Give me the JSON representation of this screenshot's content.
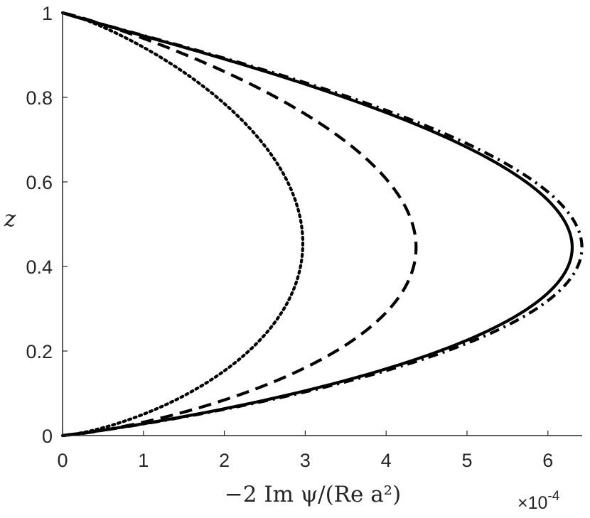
{
  "chart_data": {
    "type": "line",
    "xlabel": "−2 Im ψ/(Re a²)",
    "ylabel": "z",
    "x_multiplier_label": "×10",
    "x_multiplier_exponent": "-4",
    "xlim": [
      0,
      6.5
    ],
    "ylim": [
      0,
      1
    ],
    "xticks": [
      "0",
      "1",
      "2",
      "3",
      "4",
      "5",
      "6"
    ],
    "yticks": [
      "0",
      "0.2",
      "0.4",
      "0.6",
      "0.8",
      "1"
    ],
    "grid": false,
    "series": [
      {
        "style": "dotted",
        "peak_x": 2.97,
        "peak_z": 0.455,
        "shape": 2.2,
        "color": "#000000"
      },
      {
        "style": "dashed",
        "peak_x": 4.37,
        "peak_z": 0.445,
        "shape": 2.0,
        "color": "#000000"
      },
      {
        "style": "solid",
        "peak_x": 6.3,
        "peak_z": 0.445,
        "shape": 1.7,
        "color": "#000000"
      },
      {
        "style": "dashdot",
        "peak_x": 6.42,
        "peak_z": 0.445,
        "shape": 1.7,
        "color": "#000000"
      }
    ]
  }
}
